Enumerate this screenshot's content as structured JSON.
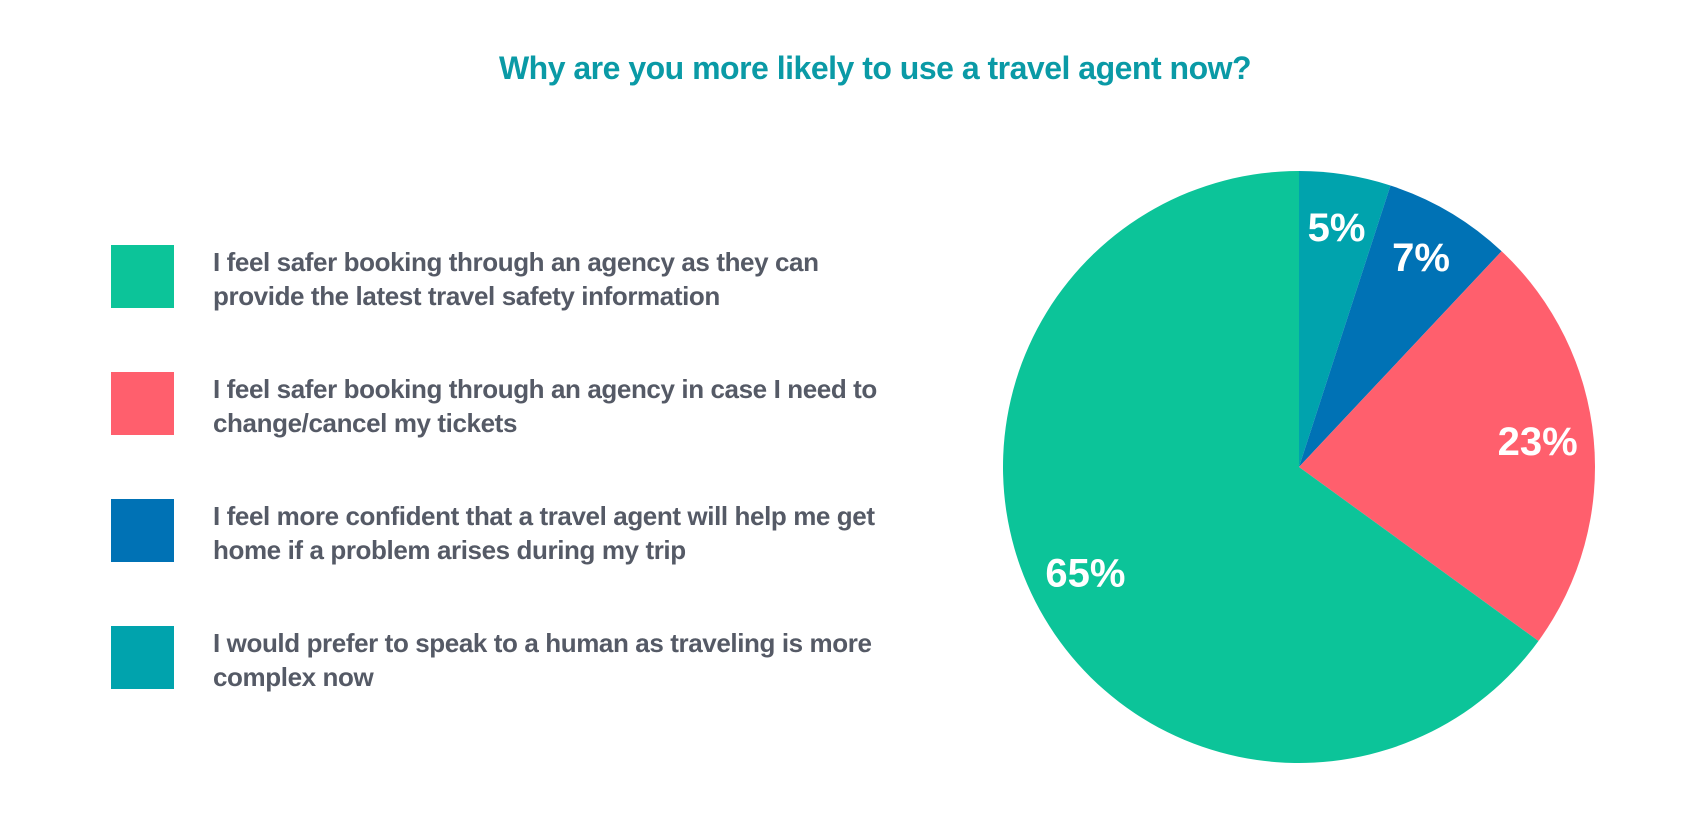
{
  "chart_data": {
    "type": "pie",
    "title": "Why are you more likely to use a travel agent now?",
    "categories": [
      "I feel safer booking through an agency as they can provide the latest travel safety information",
      "I feel safer booking through an agency in case I need to change/cancel my tickets",
      "I feel more confident that a travel agent will help me get home if a problem arises during my trip",
      "I would prefer to speak to a human as traveling is more complex now"
    ],
    "values": [
      65,
      23,
      7,
      5
    ],
    "value_labels": [
      "65%",
      "23%",
      "7%",
      "5%"
    ],
    "colors": [
      "#0cc499",
      "#ff5f6d",
      "#0072b5",
      "#00a3ad"
    ]
  }
}
